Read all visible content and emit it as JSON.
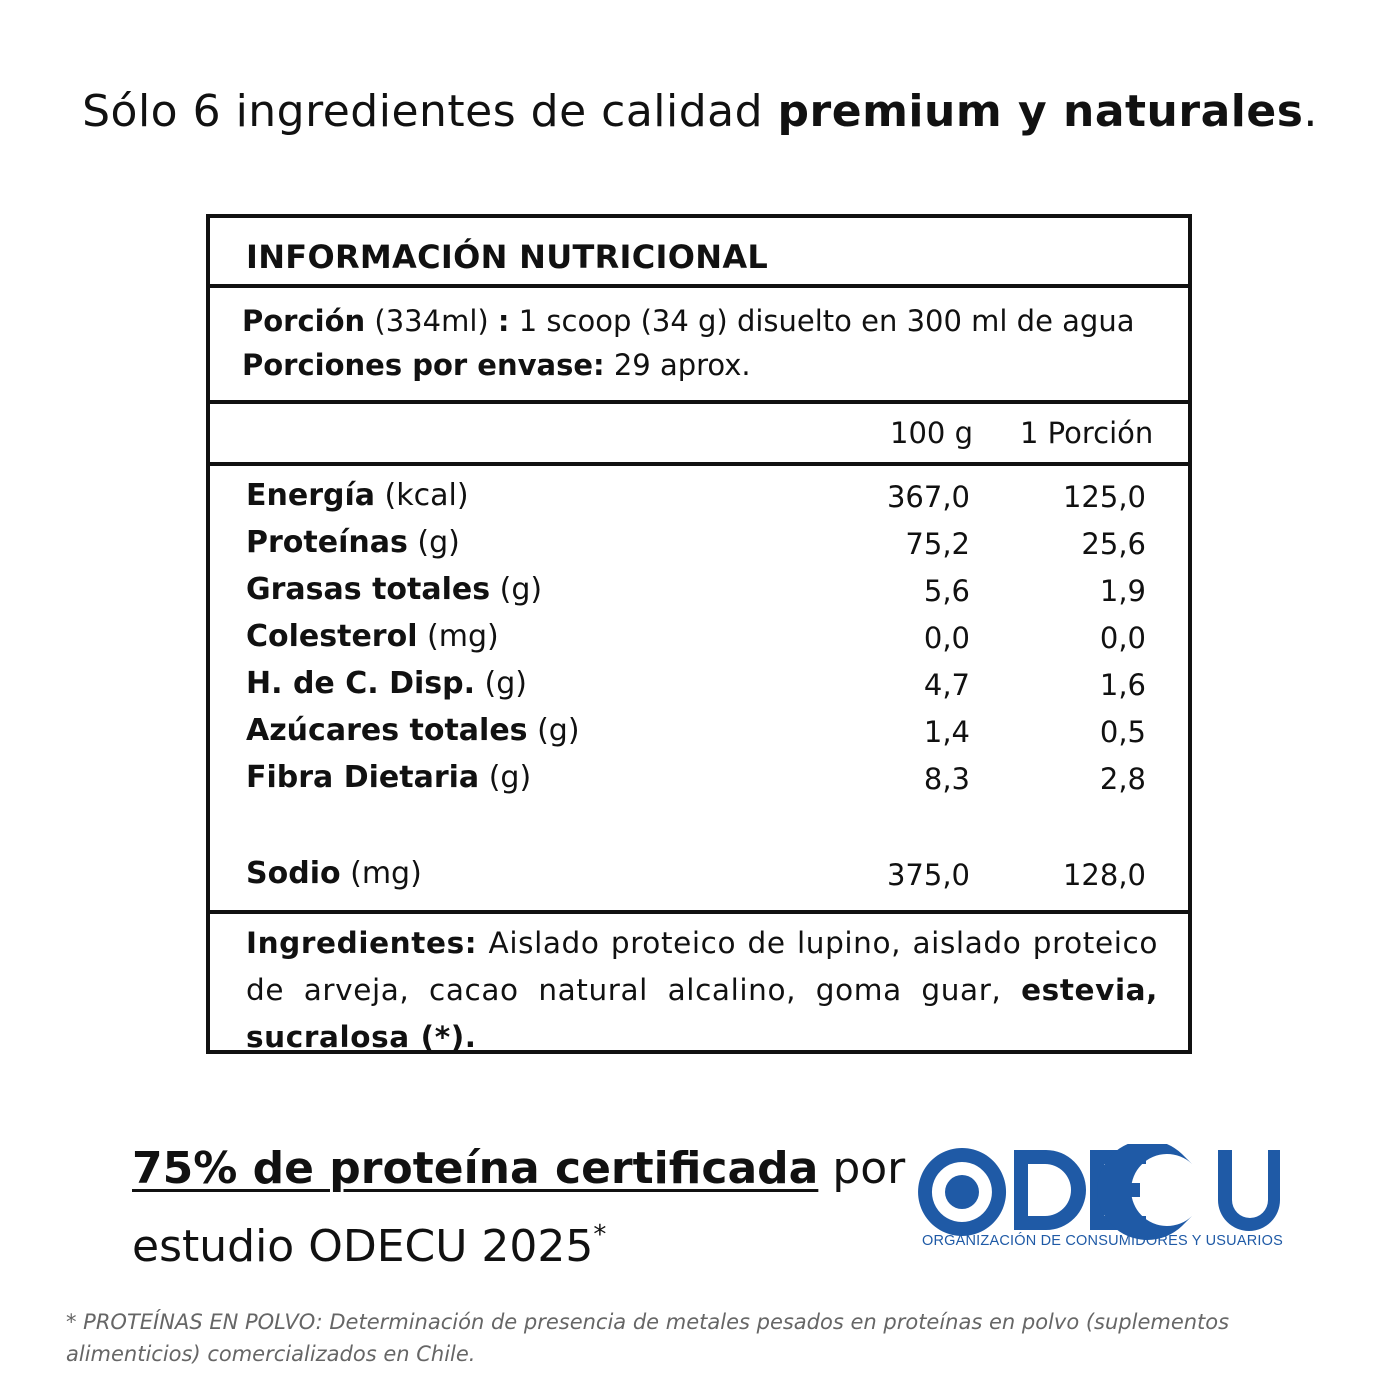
{
  "headline": {
    "lead": "Sólo 6 ingredientes de calidad ",
    "bold": "premium y naturales",
    "tail": "."
  },
  "label": {
    "title": "INFORMACIÓN NUTRICIONAL",
    "portion_bold": "Porción",
    "portion_size": " (334ml) ",
    "portion_colon": ":",
    "portion_rest": " 1 scoop (34 g) disuelto en 300 ml de agua",
    "servings_bold": "Porciones por envase:",
    "servings_value": " 29 aprox.",
    "col_100g": "100 g",
    "col_portion": "1 Porción",
    "nutrients": [
      {
        "name": "Energía",
        "unit": " (kcal)",
        "per100": "367,0",
        "perPortion": "125,0"
      },
      {
        "name": "Proteínas",
        "unit": " (g)",
        "per100": "75,2",
        "perPortion": "25,6"
      },
      {
        "name": "Grasas totales",
        "unit": " (g)",
        "per100": "5,6",
        "perPortion": "1,9"
      },
      {
        "name": "Colesterol",
        "unit": " (mg)",
        "per100": "0,0",
        "perPortion": "0,0"
      },
      {
        "name": "H. de C. Disp.",
        "unit": " (g)",
        "per100": "4,7",
        "perPortion": "1,6"
      },
      {
        "name": "Azúcares totales",
        "unit": " (g)",
        "per100": "1,4",
        "perPortion": "0,5"
      },
      {
        "name": "Fibra Dietaria",
        "unit": " (g)",
        "per100": "8,3",
        "perPortion": "2,8"
      },
      {
        "name": "Sodio",
        "unit": " (mg)",
        "per100": "375,0",
        "perPortion": "128,0"
      }
    ],
    "ingredients_label": "Ingredientes:",
    "ingredients_text": " Aislado proteico de lupino, aislado proteico de arveja, cacao natural alcalino, goma guar, ",
    "ingredients_bold_tail": "estevia, sucralosa (*)."
  },
  "certification": {
    "strong": "75% de proteína certificada",
    "rest": " por",
    "line2": "estudio ODECU 2025",
    "mark": "*"
  },
  "logo": {
    "name": "ODECU",
    "subtitle": "ORGANIZACIÓN DE CONSUMIDORES Y USUARIOS",
    "color": "#1f5aa6"
  },
  "footnote": "* PROTEÍNAS EN POLVO: Determinación de presencia de metales pesados en proteínas en polvo (suplementos alimenticios) comercializados en Chile."
}
